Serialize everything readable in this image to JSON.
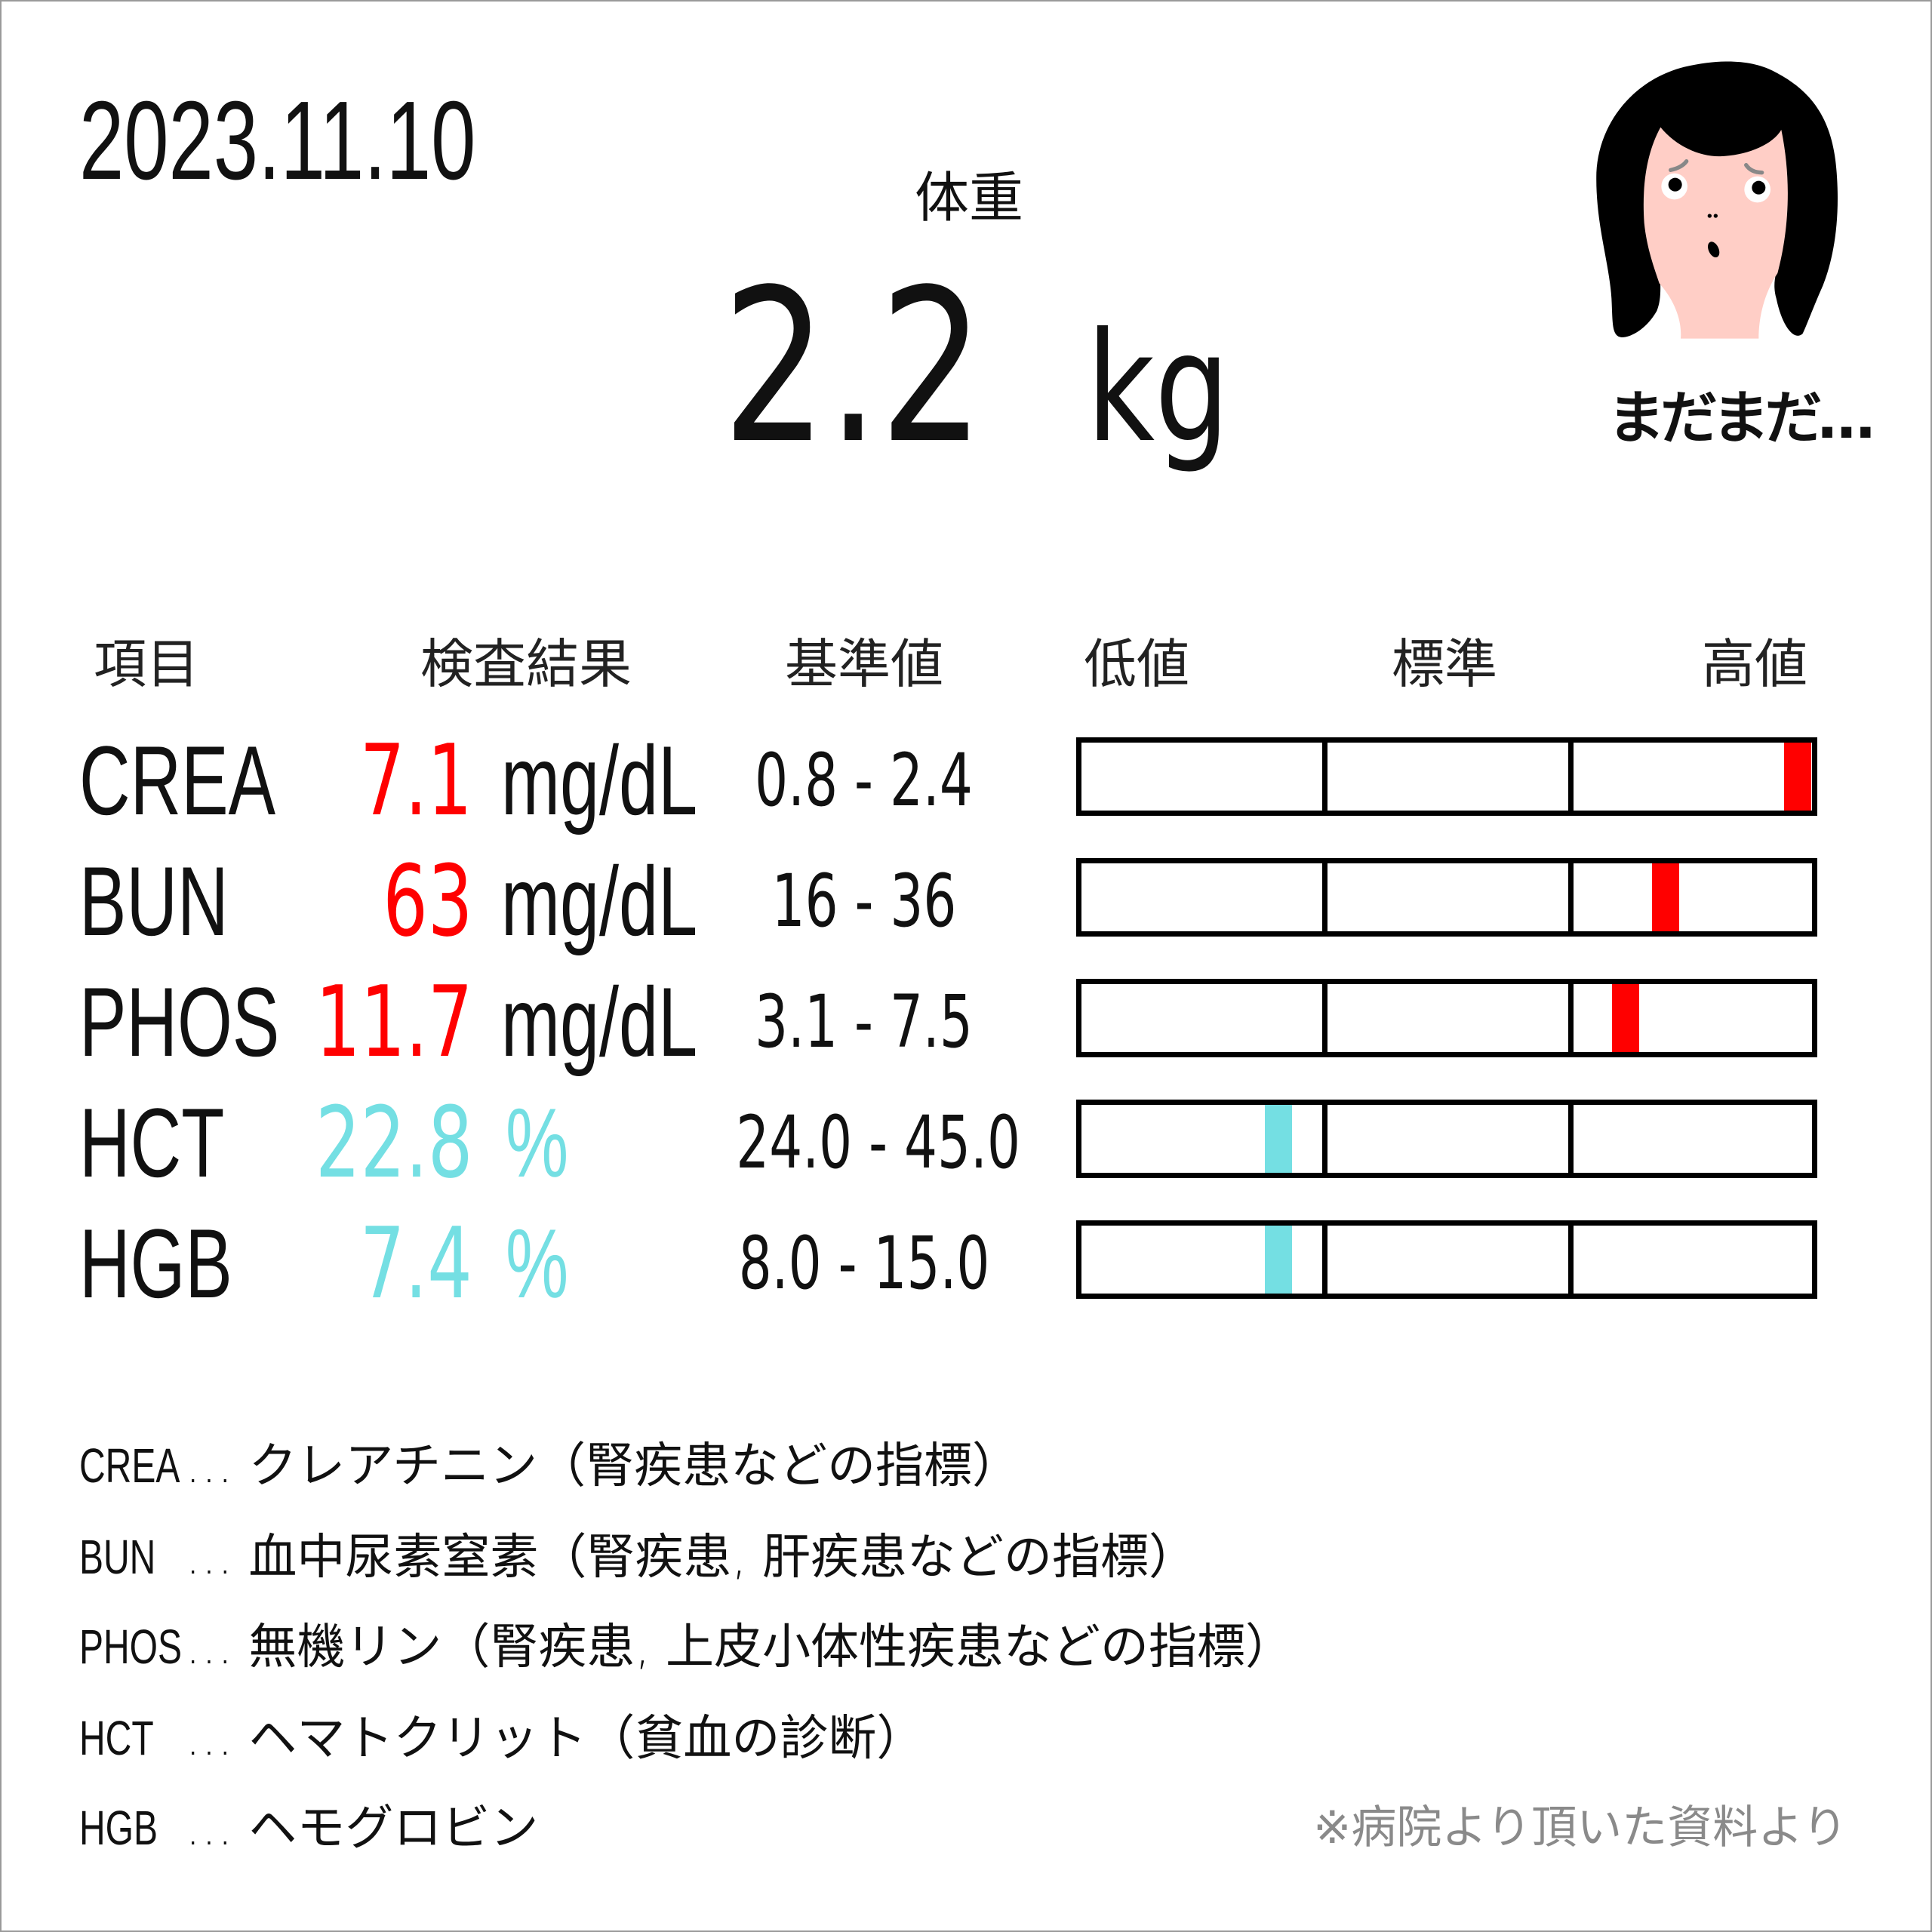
{
  "date": "2023.11.10",
  "weight": {
    "label": "体重",
    "value": "2.2",
    "unit": "kg"
  },
  "mascot": {
    "caption": "まだまだ…",
    "expression": "worried"
  },
  "table": {
    "headers": {
      "item": "項目",
      "result": "検査結果",
      "reference": "基準値",
      "low": "低値",
      "normal": "標準",
      "high": "高値"
    },
    "rows": [
      {
        "name": "CREA",
        "value": "7.1",
        "unit": "mg/dL",
        "range": "0.8 - 2.4",
        "status": "high",
        "gauge_position": 0.98
      },
      {
        "name": "BUN",
        "value": "63",
        "unit": "mg/dL",
        "range": "16 - 36",
        "status": "high",
        "gauge_position": 0.8
      },
      {
        "name": "PHOS",
        "value": "11.7",
        "unit": "mg/dL",
        "range": "3.1 - 7.5",
        "status": "high",
        "gauge_position": 0.745
      },
      {
        "name": "HCT",
        "value": "22.8",
        "unit": "%",
        "range": "24.0 - 45.0",
        "status": "low",
        "gauge_position": 0.27
      },
      {
        "name": "HGB",
        "value": "7.4",
        "unit": "%",
        "range": "8.0 - 15.0",
        "status": "low",
        "gauge_position": 0.27
      }
    ]
  },
  "colors": {
    "high": "#ff0000",
    "low": "#74dfe3",
    "skin": "#ffcec6"
  },
  "footnotes": [
    {
      "name": "CREA",
      "desc": "… クレアチニン（腎疾患などの指標）"
    },
    {
      "name": "BUN",
      "desc": "… 血中尿素窒素（腎疾患, 肝疾患などの指標）"
    },
    {
      "name": "PHOS",
      "desc": "… 無機リン（腎疾患, 上皮小体性疾患などの指標）"
    },
    {
      "name": "HCT",
      "desc": "… ヘマトクリット（貧血の診断）"
    },
    {
      "name": "HGB",
      "desc": "… ヘモグロビン"
    }
  ],
  "note": "※病院より頂いた資料より"
}
